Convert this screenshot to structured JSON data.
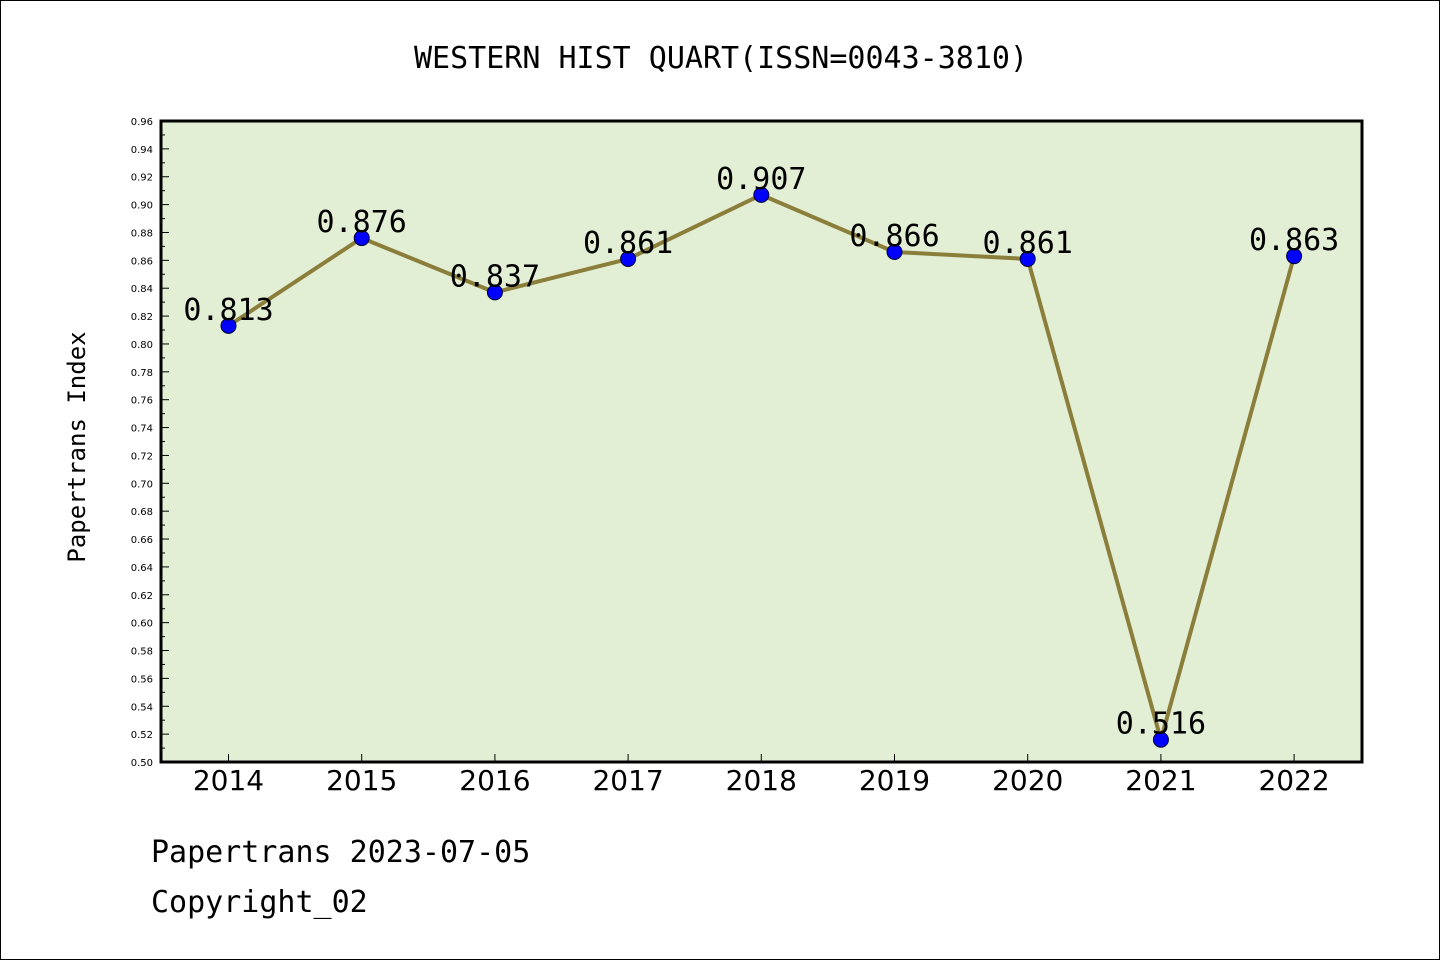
{
  "chart_data": {
    "type": "line",
    "title": "WESTERN HIST QUART(ISSN=0043-3810)",
    "xlabel": "",
    "ylabel": "Papertrans Index",
    "categories": [
      "2014",
      "2015",
      "2016",
      "2017",
      "2018",
      "2019",
      "2020",
      "2021",
      "2022"
    ],
    "values": [
      0.813,
      0.876,
      0.837,
      0.861,
      0.907,
      0.866,
      0.861,
      0.516,
      0.863
    ],
    "data_labels": [
      "0.813",
      "0.876",
      "0.837",
      "0.861",
      "0.907",
      "0.866",
      "0.861",
      "0.516",
      "0.863"
    ],
    "ylim": [
      0.5,
      0.96
    ],
    "ytick_step": 0.02,
    "grid": false,
    "legend": "none",
    "colors": {
      "plot_background": "#e2efd5",
      "line": "#8b7d3a",
      "marker": "#0000ff"
    }
  },
  "footer": {
    "line1": "Papertrans 2023-07-05",
    "line2": "Copyright_02"
  }
}
